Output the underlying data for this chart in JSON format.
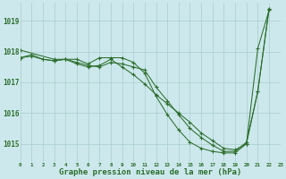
{
  "background_color": "#cce8ec",
  "grid_color": "#aacccc",
  "line_color": "#2d6e2d",
  "marker_color": "#2d6e2d",
  "xlabel": "Graphe pression niveau de la mer (hPa)",
  "xlabel_fontsize": 6.5,
  "xlim": [
    0,
    23
  ],
  "ylim": [
    1014.4,
    1019.6
  ],
  "yticks": [
    1015,
    1016,
    1017,
    1018,
    1019
  ],
  "xticks": [
    0,
    1,
    2,
    3,
    4,
    5,
    6,
    7,
    8,
    9,
    10,
    11,
    12,
    13,
    14,
    15,
    16,
    17,
    18,
    19,
    20,
    21,
    22,
    23
  ],
  "series": [
    {
      "x": [
        0,
        1,
        2,
        3,
        4,
        5,
        6,
        7,
        8,
        9,
        10,
        11,
        12,
        13,
        14,
        15,
        16,
        17,
        18,
        19,
        20,
        21,
        22
      ],
      "y": [
        1017.8,
        1017.9,
        1017.75,
        1017.7,
        1017.75,
        1017.6,
        1017.5,
        1017.55,
        1017.75,
        1017.5,
        1017.25,
        1016.95,
        1016.6,
        1016.3,
        1016.0,
        1015.7,
        1015.35,
        1015.1,
        1014.85,
        1014.8,
        1015.0,
        1018.1,
        1019.35
      ]
    },
    {
      "x": [
        0,
        1,
        2,
        3,
        4,
        5,
        6,
        7,
        8,
        9,
        10,
        11,
        12,
        13,
        14,
        15,
        16,
        17,
        18,
        19,
        20,
        21,
        22
      ],
      "y": [
        1017.8,
        1017.85,
        1017.75,
        1017.7,
        1017.75,
        1017.65,
        1017.55,
        1017.5,
        1017.65,
        1017.6,
        1017.5,
        1017.4,
        1016.85,
        1016.4,
        1015.95,
        1015.5,
        1015.2,
        1014.95,
        1014.75,
        1014.75,
        1015.05,
        1016.7,
        1019.4
      ]
    },
    {
      "x": [
        0,
        3,
        4,
        5,
        6,
        7,
        8,
        9,
        10,
        11,
        12,
        13,
        14,
        15,
        16,
        17,
        18,
        19,
        20,
        21,
        22
      ],
      "y": [
        1018.05,
        1017.75,
        1017.75,
        1017.75,
        1017.6,
        1017.8,
        1017.8,
        1017.8,
        1017.65,
        1017.3,
        1016.55,
        1015.95,
        1015.45,
        1015.05,
        1014.85,
        1014.75,
        1014.7,
        1014.7,
        1015.0,
        1016.7,
        1019.4
      ]
    }
  ]
}
